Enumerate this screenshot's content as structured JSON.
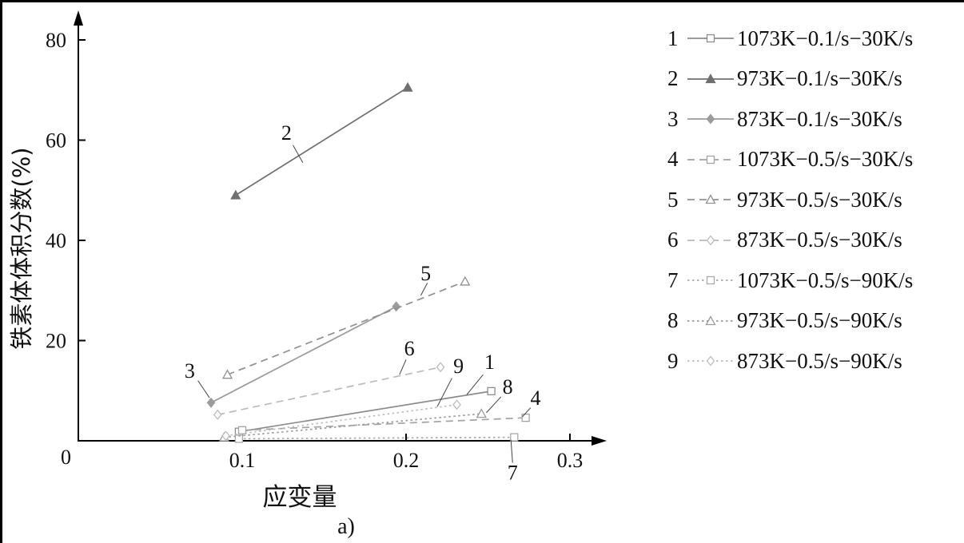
{
  "figure": {
    "caption": "a)"
  },
  "chart_data": {
    "type": "line",
    "title": "",
    "xlabel": "应变量",
    "ylabel": "铁素体体积分数(%)",
    "origin_label": "0",
    "xlim": [
      0,
      0.32
    ],
    "ylim": [
      0,
      85
    ],
    "grid": false,
    "legend_position": "right",
    "xticks": [
      {
        "v": 0.1,
        "label": "0.1"
      },
      {
        "v": 0.2,
        "label": "0.2"
      },
      {
        "v": 0.3,
        "label": "0.3"
      }
    ],
    "yticks": [
      {
        "v": 20,
        "label": "20"
      },
      {
        "v": 40,
        "label": "40"
      },
      {
        "v": 60,
        "label": "60"
      },
      {
        "v": 80,
        "label": "80"
      }
    ],
    "series": [
      {
        "num": "1",
        "label": "1073K−0.1/s−30K/s",
        "color": "#8c8c8c",
        "dash": "solid",
        "marker": "square",
        "filled": false,
        "points": [
          [
            0.098,
            1.8
          ],
          [
            0.252,
            9.9
          ]
        ]
      },
      {
        "num": "2",
        "label": "973K−0.1/s−30K/s",
        "color": "#6f6f6f",
        "dash": "solid",
        "marker": "triangle",
        "filled": true,
        "points": [
          [
            0.096,
            49.0
          ],
          [
            0.201,
            70.5
          ]
        ]
      },
      {
        "num": "3",
        "label": "873K−0.1/s−30K/s",
        "color": "#9b9b9b",
        "dash": "solid",
        "marker": "diamond",
        "filled": true,
        "points": [
          [
            0.081,
            7.6
          ],
          [
            0.194,
            26.8
          ]
        ]
      },
      {
        "num": "4",
        "label": "1073K−0.5/s−30K/s",
        "color": "#a3a3a3",
        "dash": "dashed",
        "marker": "square",
        "filled": false,
        "points": [
          [
            0.1,
            2.1
          ],
          [
            0.273,
            4.6
          ]
        ]
      },
      {
        "num": "5",
        "label": "973K−0.5/s−30K/s",
        "color": "#909090",
        "dash": "dashed",
        "marker": "triangle",
        "filled": false,
        "points": [
          [
            0.091,
            13.2
          ],
          [
            0.236,
            31.8
          ]
        ]
      },
      {
        "num": "6",
        "label": "873K−0.5/s−30K/s",
        "color": "#bababa",
        "dash": "dashed",
        "marker": "diamond",
        "filled": false,
        "points": [
          [
            0.085,
            5.2
          ],
          [
            0.221,
            14.7
          ]
        ]
      },
      {
        "num": "7",
        "label": "1073K−0.5/s−90K/s",
        "color": "#a9a9a9",
        "dash": "dotted",
        "marker": "square",
        "filled": false,
        "points": [
          [
            0.098,
            0.4
          ],
          [
            0.266,
            0.7
          ]
        ]
      },
      {
        "num": "8",
        "label": "973K−0.5/s−90K/s",
        "color": "#9b9b9b",
        "dash": "dotted",
        "marker": "triangle",
        "filled": false,
        "points": [
          [
            0.089,
            0.7
          ],
          [
            0.246,
            5.4
          ]
        ]
      },
      {
        "num": "9",
        "label": "873K−0.5/s−90K/s",
        "color": "#bdbdbd",
        "dash": "dotted",
        "marker": "diamond",
        "filled": false,
        "points": [
          [
            0.09,
            1.0
          ],
          [
            0.231,
            7.2
          ]
        ]
      }
    ],
    "annotations": [
      {
        "text": "2",
        "x": 0.127,
        "y": 61.5,
        "leader": [
          [
            0.131,
            59.0
          ],
          [
            0.137,
            55.5
          ]
        ]
      },
      {
        "text": "5",
        "x": 0.212,
        "y": 33.5,
        "leader": [
          [
            0.213,
            31.5
          ],
          [
            0.209,
            29.0
          ]
        ]
      },
      {
        "text": "3",
        "x": 0.068,
        "y": 14.0,
        "leader": [
          [
            0.073,
            12.0
          ],
          [
            0.08,
            8.6
          ]
        ]
      },
      {
        "text": "6",
        "x": 0.202,
        "y": 18.5,
        "leader": [
          [
            0.2,
            16.2
          ],
          [
            0.196,
            13.2
          ]
        ]
      },
      {
        "text": "9",
        "x": 0.232,
        "y": 15.0,
        "leader": [
          [
            0.228,
            12.5
          ],
          [
            0.219,
            6.8
          ]
        ]
      },
      {
        "text": "1",
        "x": 0.251,
        "y": 15.8,
        "leader": [
          [
            0.247,
            13.2
          ],
          [
            0.237,
            9.2
          ]
        ]
      },
      {
        "text": "8",
        "x": 0.262,
        "y": 10.8,
        "leader": [
          [
            0.258,
            8.8
          ],
          [
            0.249,
            5.6
          ]
        ]
      },
      {
        "text": "4",
        "x": 0.279,
        "y": 8.6,
        "leader": [
          [
            0.276,
            6.6
          ],
          [
            0.271,
            4.8
          ]
        ]
      },
      {
        "text": "7",
        "x": 0.265,
        "y": -6.3,
        "leader": [
          [
            0.265,
            -4.4
          ],
          [
            0.264,
            0.2
          ]
        ]
      }
    ]
  }
}
